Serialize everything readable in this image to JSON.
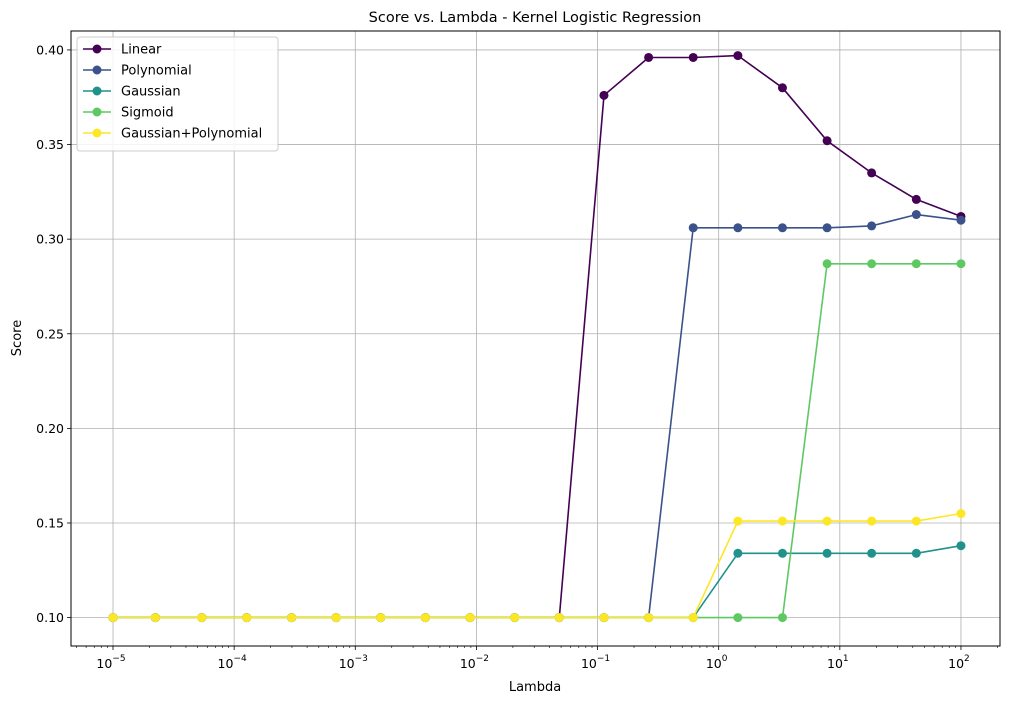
{
  "chart_data": {
    "type": "line",
    "title": "Score vs. Lambda - Kernel Logistic Regression",
    "xlabel": "Lambda",
    "ylabel": "Score",
    "xscale": "log",
    "xlim": [
      4.5e-06,
      210
    ],
    "ylim": [
      0.085,
      0.41
    ],
    "grid": true,
    "legend_position": "top-left",
    "x": [
      1e-05,
      2.24e-05,
      5.41e-05,
      0.000127,
      0.000298,
      0.000695,
      0.00162,
      0.00379,
      0.00886,
      0.0207,
      0.0483,
      0.113,
      0.264,
      0.616,
      1.44,
      3.36,
      7.85,
      18.3,
      42.8,
      100
    ],
    "x_ticks": [
      {
        "value": 1e-05,
        "base": "10",
        "exp": "−5"
      },
      {
        "value": 0.0001,
        "base": "10",
        "exp": "−4"
      },
      {
        "value": 0.001,
        "base": "10",
        "exp": "−3"
      },
      {
        "value": 0.01,
        "base": "10",
        "exp": "−2"
      },
      {
        "value": 0.1,
        "base": "10",
        "exp": "−1"
      },
      {
        "value": 1,
        "base": "10",
        "exp": "0"
      },
      {
        "value": 10,
        "base": "10",
        "exp": "1"
      },
      {
        "value": 100,
        "base": "10",
        "exp": "2"
      }
    ],
    "y_ticks": [
      "0.10",
      "0.15",
      "0.20",
      "0.25",
      "0.30",
      "0.35",
      "0.40"
    ],
    "series": [
      {
        "name": "Linear",
        "color": "#440154",
        "values": [
          0.1,
          0.1,
          0.1,
          0.1,
          0.1,
          0.1,
          0.1,
          0.1,
          0.1,
          0.1,
          0.1,
          0.376,
          0.396,
          0.396,
          0.397,
          0.38,
          0.352,
          0.335,
          0.321,
          0.312
        ]
      },
      {
        "name": "Polynomial",
        "color": "#3b528b",
        "values": [
          0.1,
          0.1,
          0.1,
          0.1,
          0.1,
          0.1,
          0.1,
          0.1,
          0.1,
          0.1,
          0.1,
          0.1,
          0.1,
          0.306,
          0.306,
          0.306,
          0.306,
          0.307,
          0.313,
          0.31
        ]
      },
      {
        "name": "Gaussian",
        "color": "#21918c",
        "values": [
          0.1,
          0.1,
          0.1,
          0.1,
          0.1,
          0.1,
          0.1,
          0.1,
          0.1,
          0.1,
          0.1,
          0.1,
          0.1,
          0.1,
          0.134,
          0.134,
          0.134,
          0.134,
          0.134,
          0.138
        ]
      },
      {
        "name": "Sigmoid",
        "color": "#5ec962",
        "values": [
          0.1,
          0.1,
          0.1,
          0.1,
          0.1,
          0.1,
          0.1,
          0.1,
          0.1,
          0.1,
          0.1,
          0.1,
          0.1,
          0.1,
          0.1,
          0.1,
          0.287,
          0.287,
          0.287,
          0.287
        ]
      },
      {
        "name": "Gaussian+Polynomial",
        "color": "#fde725",
        "values": [
          0.1,
          0.1,
          0.1,
          0.1,
          0.1,
          0.1,
          0.1,
          0.1,
          0.1,
          0.1,
          0.1,
          0.1,
          0.1,
          0.1,
          0.151,
          0.151,
          0.151,
          0.151,
          0.151,
          0.155
        ]
      }
    ]
  }
}
